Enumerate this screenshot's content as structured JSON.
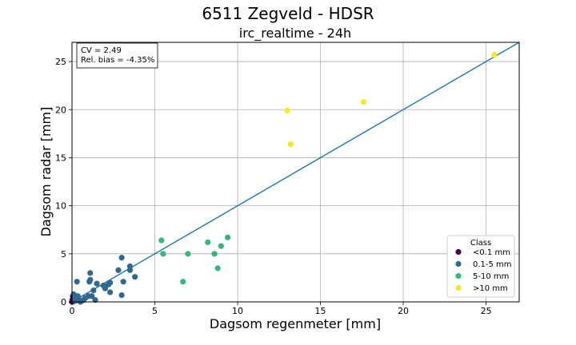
{
  "chart_data": {
    "type": "scatter",
    "title": "6511 Zegveld - HDSR",
    "subtitle": "irc_realtime - 24h",
    "xlabel": "Dagsom regenmeter [mm]",
    "ylabel": "Dagsom radar [mm]",
    "xlim": [
      0,
      27
    ],
    "ylim": [
      0,
      27
    ],
    "xticks": [
      "0",
      "5",
      "10",
      "15",
      "20",
      "25"
    ],
    "yticks": [
      "0",
      "5",
      "10",
      "15",
      "20",
      "25"
    ],
    "grid": true,
    "stats": [
      "CV = 2.49",
      "Rel. bias = -4.35%"
    ],
    "reference_line": {
      "x": [
        0,
        27
      ],
      "y": [
        0,
        27
      ],
      "color": "#1f77b4"
    },
    "legend": {
      "title": "Class",
      "position": "bottom-right"
    },
    "series": [
      {
        "name": "<0.1 mm",
        "color": "#440154",
        "points": [
          [
            0.0,
            0.0
          ],
          [
            0.02,
            0.2
          ],
          [
            0.05,
            0.6
          ],
          [
            0.08,
            0.05
          ]
        ]
      },
      {
        "name": "0.1-5 mm",
        "color": "#31688e",
        "points": [
          [
            0.1,
            0.8
          ],
          [
            0.15,
            0.4
          ],
          [
            0.2,
            0.1
          ],
          [
            0.25,
            0.2
          ],
          [
            0.3,
            2.1
          ],
          [
            0.35,
            0.6
          ],
          [
            0.4,
            0.3
          ],
          [
            0.5,
            0.0
          ],
          [
            0.6,
            0.1
          ],
          [
            0.7,
            0.2
          ],
          [
            0.8,
            0.4
          ],
          [
            1.0,
            0.6
          ],
          [
            1.05,
            2.1
          ],
          [
            1.1,
            2.3
          ],
          [
            1.1,
            3.0
          ],
          [
            1.2,
            0.6
          ],
          [
            1.3,
            1.2
          ],
          [
            1.4,
            0.2
          ],
          [
            1.5,
            1.9
          ],
          [
            1.9,
            1.7
          ],
          [
            2.0,
            1.4
          ],
          [
            2.2,
            1.8
          ],
          [
            2.3,
            1.0
          ],
          [
            2.3,
            2.0
          ],
          [
            2.8,
            3.3
          ],
          [
            3.0,
            4.6
          ],
          [
            3.0,
            0.7
          ],
          [
            3.1,
            2.1
          ],
          [
            3.5,
            3.7
          ],
          [
            3.5,
            3.3
          ],
          [
            3.8,
            2.6
          ]
        ]
      },
      {
        "name": "5-10 mm",
        "color": "#35b779",
        "points": [
          [
            5.4,
            6.4
          ],
          [
            5.5,
            5.0
          ],
          [
            6.7,
            2.1
          ],
          [
            7.0,
            5.0
          ],
          [
            8.2,
            6.2
          ],
          [
            8.6,
            5.0
          ],
          [
            8.8,
            3.5
          ],
          [
            9.0,
            5.8
          ],
          [
            9.4,
            6.7
          ]
        ]
      },
      {
        "name": ">10 mm",
        "color": "#fde725",
        "points": [
          [
            13.0,
            19.9
          ],
          [
            13.2,
            16.4
          ],
          [
            17.6,
            20.8
          ],
          [
            25.5,
            25.7
          ]
        ]
      }
    ]
  }
}
